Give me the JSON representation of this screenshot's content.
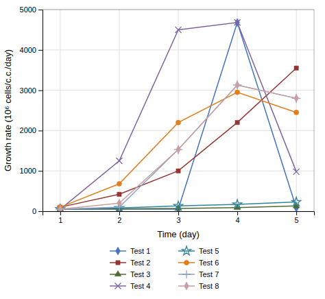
{
  "chart_data": {
    "type": "line",
    "xlabel": "Time (day)",
    "ylabel": "Growth rate (10⁶ cells/c.c./day)",
    "x": [
      1,
      2,
      3,
      4,
      5
    ],
    "series": [
      {
        "name": "Test 1",
        "values": [
          50,
          50,
          50,
          4680,
          80
        ],
        "color": "#4472c4",
        "marker": "diamond",
        "line_style": "solid"
      },
      {
        "name": "Test 2",
        "values": [
          100,
          420,
          1000,
          2200,
          3550
        ],
        "color": "#943634",
        "marker": "square",
        "line_style": "solid"
      },
      {
        "name": "Test 3",
        "values": [
          50,
          60,
          70,
          90,
          130
        ],
        "color": "#4e6b2e",
        "marker": "triangle",
        "line_style": "solid"
      },
      {
        "name": "Test 4",
        "values": [
          50,
          1250,
          4500,
          4680,
          980
        ],
        "color": "#8064a2",
        "marker": "x",
        "line_style": "solid"
      },
      {
        "name": "Test 5",
        "values": [
          50,
          80,
          130,
          170,
          230
        ],
        "color": "#31849b",
        "marker": "star",
        "line_style": "solid"
      },
      {
        "name": "Test 6",
        "values": [
          100,
          680,
          2200,
          2950,
          2450
        ],
        "color": "#e07d1c",
        "marker": "circle",
        "line_style": "solid"
      },
      {
        "name": "Test 7",
        "values": [
          50,
          100,
          1530,
          3130,
          2800
        ],
        "color": "#92a0c8",
        "marker": "plus",
        "line_style": "solid"
      },
      {
        "name": "Test 8",
        "values": [
          50,
          200,
          1530,
          3130,
          2800
        ],
        "color": "#c9a0a0",
        "marker": "diamond",
        "line_style": "solid"
      }
    ],
    "xlim": [
      0.7,
      5.3
    ],
    "ylim": [
      0,
      5000
    ],
    "xticks": [
      1,
      2,
      3,
      4,
      5
    ],
    "yticks": [
      0,
      1000,
      2000,
      3000,
      4000,
      5000
    ],
    "grid": true,
    "legend": "bottom"
  }
}
